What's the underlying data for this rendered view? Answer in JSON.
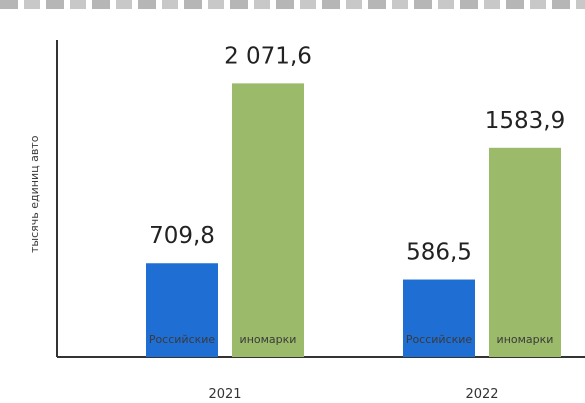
{
  "chart_data": {
    "type": "bar",
    "ylabel": "тысячь единиц авто",
    "ylim": [
      0,
      2400
    ],
    "grid": false,
    "groups": [
      {
        "year": "2021",
        "bars": [
          {
            "category": "Российские",
            "value": 709.8,
            "label": "709,8",
            "color": "#1f6ed4"
          },
          {
            "category": "иномарки",
            "value": 2071.6,
            "label": "2 071,6",
            "color": "#9bbb6a"
          }
        ]
      },
      {
        "year": "2022",
        "bars": [
          {
            "category": "Российские",
            "value": 586.5,
            "label": "586,5",
            "color": "#1f6ed4"
          },
          {
            "category": "иномарки",
            "value": 1583.9,
            "label": "1583,9",
            "color": "#9bbb6a"
          }
        ]
      }
    ]
  }
}
